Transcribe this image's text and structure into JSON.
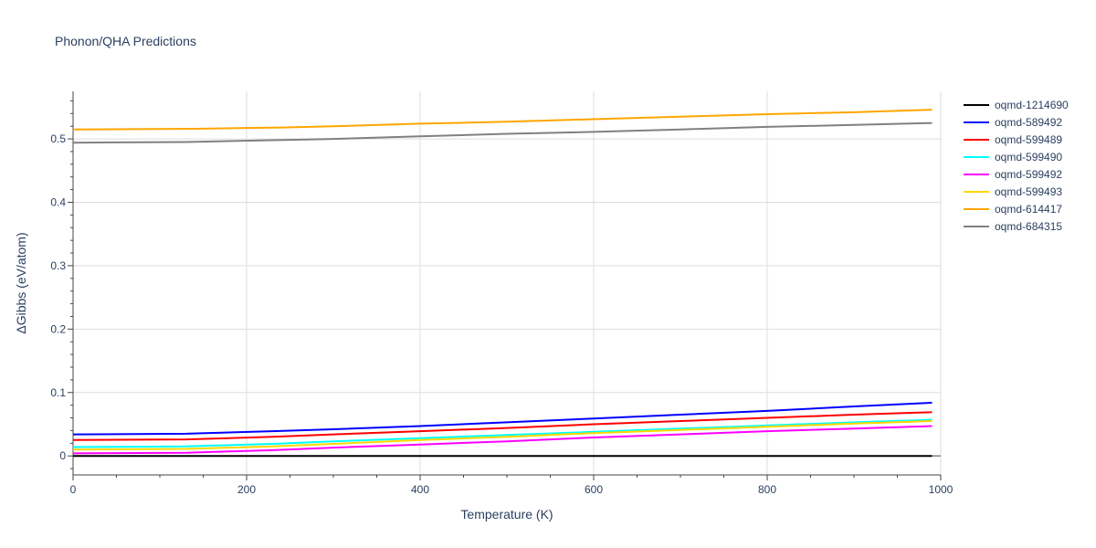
{
  "chart_data": {
    "type": "line",
    "title": "Phonon/QHA Predictions",
    "xlabel": "Temperature (K)",
    "ylabel": "ΔGibbs (eV/atom)",
    "xlim": [
      0,
      1000
    ],
    "ylim": [
      -0.03,
      0.575
    ],
    "xticks": [
      0,
      200,
      400,
      600,
      800,
      1000
    ],
    "yticks": [
      0,
      0.1,
      0.2,
      0.3,
      0.4,
      0.5
    ],
    "xtick_labels": [
      "0",
      "200",
      "400",
      "600",
      "800",
      "1000"
    ],
    "ytick_labels": [
      "0",
      "0.1",
      "0.2",
      "0.3",
      "0.4",
      "0.5"
    ],
    "grid": true,
    "legend_position": "right",
    "series": [
      {
        "name": "oqmd-1214690",
        "color": "#000000",
        "x": [
          0,
          990
        ],
        "y": [
          0.0,
          0.0
        ]
      },
      {
        "name": "oqmd-589492",
        "color": "#0000ff",
        "x": [
          0,
          130,
          230,
          300,
          400,
          500,
          600,
          700,
          800,
          900,
          990
        ],
        "y": [
          0.034,
          0.035,
          0.039,
          0.042,
          0.047,
          0.053,
          0.059,
          0.065,
          0.071,
          0.078,
          0.084
        ]
      },
      {
        "name": "oqmd-599489",
        "color": "#ff0000",
        "x": [
          0,
          130,
          230,
          300,
          400,
          500,
          600,
          700,
          800,
          900,
          990
        ],
        "y": [
          0.025,
          0.026,
          0.03,
          0.034,
          0.039,
          0.044,
          0.05,
          0.055,
          0.06,
          0.065,
          0.069
        ]
      },
      {
        "name": "oqmd-599490",
        "color": "#00ffff",
        "x": [
          0,
          130,
          230,
          300,
          400,
          500,
          600,
          700,
          800,
          900,
          990
        ],
        "y": [
          0.014,
          0.015,
          0.019,
          0.023,
          0.028,
          0.033,
          0.038,
          0.043,
          0.048,
          0.053,
          0.057
        ]
      },
      {
        "name": "oqmd-599492",
        "color": "#ff00ff",
        "x": [
          0,
          130,
          230,
          300,
          400,
          500,
          600,
          700,
          800,
          900,
          990
        ],
        "y": [
          0.004,
          0.005,
          0.009,
          0.013,
          0.018,
          0.023,
          0.029,
          0.034,
          0.039,
          0.043,
          0.047
        ]
      },
      {
        "name": "oqmd-599493",
        "color": "#ffd700",
        "x": [
          0,
          130,
          230,
          300,
          400,
          500,
          600,
          700,
          800,
          900,
          990
        ],
        "y": [
          0.01,
          0.011,
          0.015,
          0.019,
          0.025,
          0.03,
          0.036,
          0.041,
          0.046,
          0.051,
          0.055
        ]
      },
      {
        "name": "oqmd-614417",
        "color": "#ffa500",
        "x": [
          0,
          140,
          240,
          300,
          400,
          500,
          600,
          700,
          800,
          900,
          990
        ],
        "y": [
          0.515,
          0.516,
          0.518,
          0.52,
          0.524,
          0.527,
          0.531,
          0.535,
          0.539,
          0.542,
          0.546
        ]
      },
      {
        "name": "oqmd-684315",
        "color": "#808080",
        "x": [
          0,
          130,
          230,
          300,
          400,
          500,
          600,
          700,
          800,
          900,
          990
        ],
        "y": [
          0.494,
          0.495,
          0.498,
          0.5,
          0.504,
          0.508,
          0.511,
          0.515,
          0.519,
          0.522,
          0.525
        ]
      }
    ]
  }
}
